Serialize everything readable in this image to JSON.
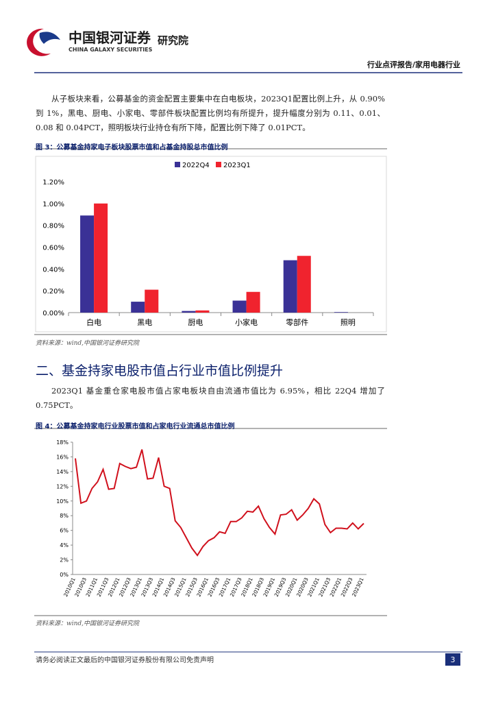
{
  "header": {
    "company_cn": "中国银河证券",
    "company_en": "CHINA GALAXY SECURITIES",
    "institute": "研究院",
    "report_type": "行业点评报告/家用电器行业"
  },
  "body": {
    "paragraphs": [
      "从子板块来看，公募基金的资金配置主要集中在白电板块，2023Q1配置比例上升，从 0.90%到 1%，黑电、厨电、小家电、零部件板块配置比例均有所提升，提升幅度分别为 0.11、0.01、0.08 和 0.04PCT，照明板块行业持仓有所下降，配置比例下降了 0.01PCT。",
      "2023Q1 基金重仓家电股市值占家电板块自由流通市值比为 6.95%，相比 22Q4 增加了 0.75PCT。"
    ],
    "section_title": "二、基金持家电股市值占行业市值比例提升"
  },
  "chart_data": [
    {
      "type": "bar",
      "title": "图 3：公募基金持家电子板块股票市值和占基金持股总市值比例",
      "source": "资料来源：wind,中国银河证券研究院",
      "categories": [
        "白电",
        "黑电",
        "厨电",
        "小家电",
        "零部件",
        "照明"
      ],
      "series": [
        {
          "name": "2022Q4",
          "color": "#3a3196",
          "values": [
            0.89,
            0.1,
            0.015,
            0.11,
            0.48,
            0.005
          ]
        },
        {
          "name": "2023Q1",
          "color": "#f0232e",
          "values": [
            1.0,
            0.21,
            0.02,
            0.19,
            0.52,
            0
          ]
        }
      ],
      "ylim": [
        0,
        1.2
      ],
      "yticks": [
        {
          "value": 0,
          "label": "0.00%"
        },
        {
          "value": 0.2,
          "label": "0.20%"
        },
        {
          "value": 0.4,
          "label": "0.40%"
        },
        {
          "value": 0.6,
          "label": "0.60%"
        },
        {
          "value": 0.8,
          "label": "0.80%"
        },
        {
          "value": 1.0,
          "label": "1.00%"
        },
        {
          "value": 1.2,
          "label": "1.20%"
        }
      ],
      "grid": false,
      "legend": "top"
    },
    {
      "type": "line",
      "title": "图 4：公募基金持家电行业股票市值和占家电行业流通总市值比例",
      "source": "资料来源：wind,中国银河证券研究院",
      "categories": [
        "2010Q1",
        null,
        "2010Q3",
        null,
        "2011Q1",
        null,
        "2011Q3",
        null,
        "2012Q1",
        null,
        "2012Q3",
        null,
        "2013Q1",
        null,
        "2013Q3",
        null,
        "2014Q1",
        null,
        "2014Q3",
        null,
        "2015Q1",
        null,
        "2015Q3",
        null,
        "2016Q1",
        null,
        "2016Q3",
        null,
        "2017Q1",
        null,
        "2017Q3",
        null,
        "2018Q1",
        null,
        "2018Q3",
        null,
        "2019Q1",
        null,
        "2019Q3",
        null,
        "2020Q1",
        null,
        "2020Q3",
        null,
        "2021Q1",
        null,
        "2021Q3",
        null,
        "2022Q1",
        null,
        "2022Q3",
        null,
        "2023Q1"
      ],
      "values": [
        15.8,
        9.7,
        10.0,
        11.7,
        12.6,
        14.3,
        11.6,
        11.7,
        15.1,
        14.7,
        14.4,
        14.6,
        17.0,
        13.0,
        13.1,
        15.9,
        12.0,
        11.7,
        7.3,
        6.4,
        5.0,
        3.6,
        2.6,
        3.8,
        4.6,
        5.0,
        5.8,
        5.6,
        7.2,
        7.2,
        7.7,
        8.6,
        8.5,
        9.3,
        7.6,
        6.4,
        5.5,
        8.1,
        8.2,
        8.8,
        7.4,
        8.1,
        9.0,
        10.3,
        9.6,
        6.8,
        5.7,
        6.3,
        6.3,
        6.2,
        7.0,
        6.2,
        6.95
      ],
      "color": "#d0101c",
      "ylim": [
        0,
        18
      ],
      "yticks": [
        {
          "value": 0,
          "label": "0%"
        },
        {
          "value": 2,
          "label": "2%"
        },
        {
          "value": 4,
          "label": "4%"
        },
        {
          "value": 6,
          "label": "6%"
        },
        {
          "value": 8,
          "label": "8%"
        },
        {
          "value": 10,
          "label": "10%"
        },
        {
          "value": 12,
          "label": "12%"
        },
        {
          "value": 14,
          "label": "14%"
        },
        {
          "value": 16,
          "label": "16%"
        },
        {
          "value": 18,
          "label": "18%"
        }
      ],
      "grid": false
    }
  ],
  "footer": {
    "disclaimer": "请务必阅读正文最后的中国银河证券股份有限公司免责声明",
    "page": 3
  }
}
